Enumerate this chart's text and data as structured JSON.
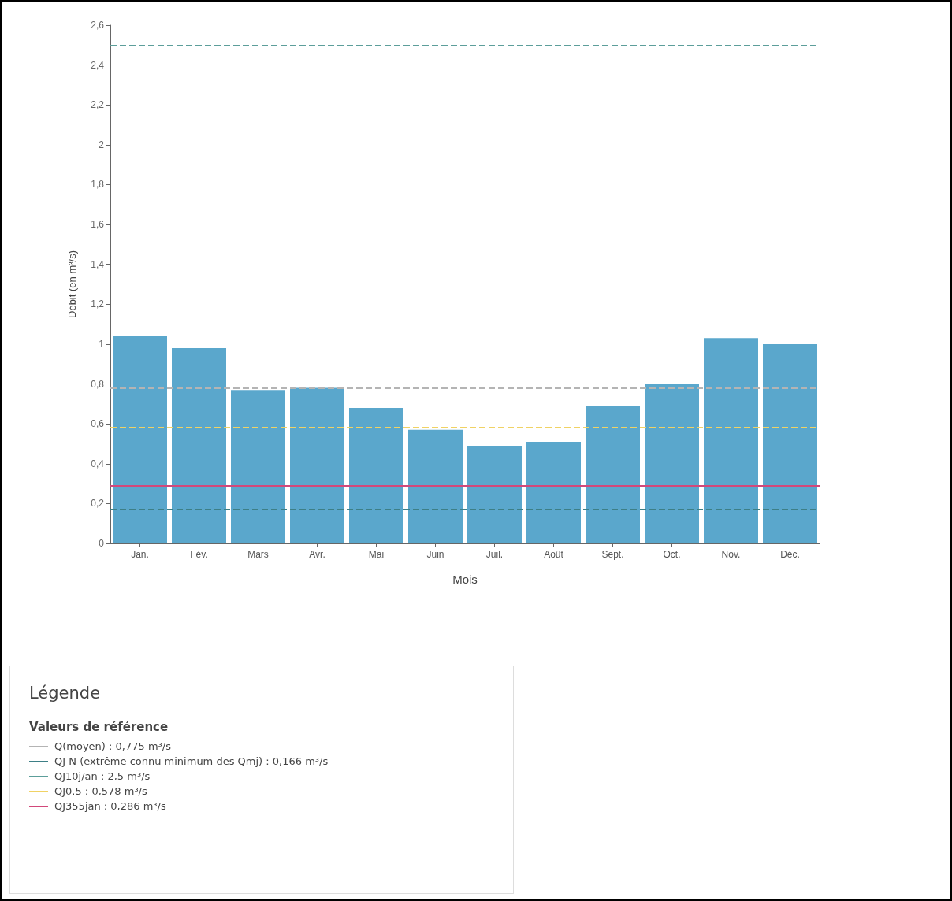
{
  "chart_data": {
    "type": "bar",
    "xlabel": "Mois",
    "ylabel": "Débit (en m³/s)",
    "categories": [
      "Jan.",
      "Fév.",
      "Mars",
      "Avr.",
      "Mai",
      "Juin",
      "Juil.",
      "Août",
      "Sept.",
      "Oct.",
      "Nov.",
      "Déc."
    ],
    "values": [
      1.04,
      0.98,
      0.77,
      0.78,
      0.68,
      0.57,
      0.49,
      0.51,
      0.69,
      0.8,
      1.03,
      1.0
    ],
    "color": "#5aa7cc",
    "ylim": [
      0,
      2.6
    ],
    "yticks": [
      0,
      {
        "value": 0.2,
        "label": "0,2"
      },
      {
        "value": 0.4,
        "label": "0,4"
      },
      {
        "value": 0.6,
        "label": "0,6"
      },
      {
        "value": 0.8,
        "label": "0,8"
      },
      1,
      {
        "value": 1.2,
        "label": "1,2"
      },
      {
        "value": 1.4,
        "label": "1,4"
      },
      {
        "value": 1.6,
        "label": "1,6"
      },
      {
        "value": 1.8,
        "label": "1,8"
      },
      2,
      {
        "value": 2.2,
        "label": "2,2"
      },
      {
        "value": 2.4,
        "label": "2,4"
      },
      {
        "value": 2.6,
        "label": "2,6"
      }
    ],
    "grid": false,
    "legend": "bottom left",
    "legend_title": "Valeurs de référence",
    "annotations": [
      "Légende"
    ],
    "ref_lines": [
      {
        "axis": "y",
        "value": 0.775,
        "label": "Q(moyen) : 0,775 m³/s",
        "color": "#b4b4b4",
        "line_style": "dashed"
      },
      {
        "axis": "y",
        "value": 0.166,
        "label": "QJ-N (extrême connu minimum des Qmj) : 0,166 m³/s",
        "color": "#3d7f86",
        "line_style": "dashed"
      },
      {
        "axis": "y",
        "value": 2.5,
        "label": "QJ10j/an : 2,5 m³/s",
        "color": "#5c9e9a",
        "line_style": "dashed"
      },
      {
        "axis": "y",
        "value": 0.578,
        "label": "QJ0.5 : 0,578 m³/s",
        "color": "#f0d264",
        "line_style": "dashed"
      },
      {
        "axis": "y",
        "value": 0.286,
        "label": "QJ355jan : 0,286 m³/s",
        "color": "#d2487a",
        "line_style": "solid"
      }
    ]
  }
}
